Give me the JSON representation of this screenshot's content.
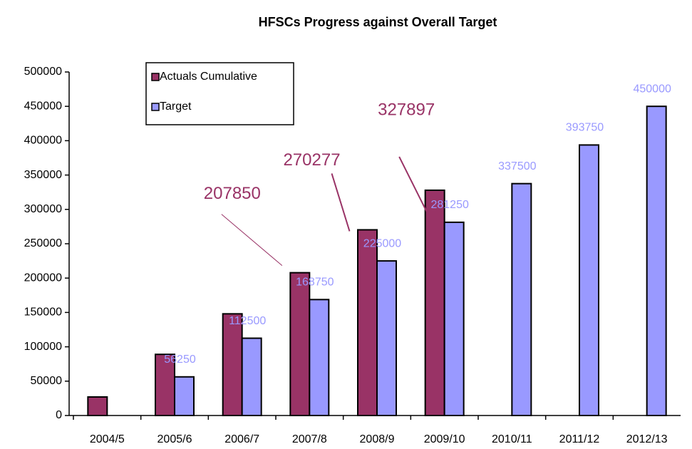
{
  "chart_data": {
    "type": "bar",
    "title": "HFSCs Progress against Overall Target",
    "categories": [
      "2004/5",
      "2005/6",
      "2006/7",
      "2007/8",
      "2008/9",
      "2009/10",
      "2010/11",
      "2011/12",
      "2012/13"
    ],
    "series": [
      {
        "name": "Actuals Cumulative",
        "color": "#993366",
        "values": [
          27000,
          89000,
          148000,
          207850,
          270277,
          327897,
          null,
          null,
          null
        ],
        "value_labels": [
          null,
          null,
          null,
          "207850",
          "270277",
          "327897",
          null,
          null,
          null
        ]
      },
      {
        "name": "Target",
        "color": "#9999ff",
        "values": [
          null,
          56250,
          112500,
          168750,
          225000,
          281250,
          337500,
          393750,
          450000
        ]
      }
    ],
    "ylim": [
      0,
      500000
    ],
    "yticks": [
      0,
      50000,
      100000,
      150000,
      200000,
      250000,
      300000,
      350000,
      400000,
      450000,
      500000
    ],
    "grid": false
  }
}
